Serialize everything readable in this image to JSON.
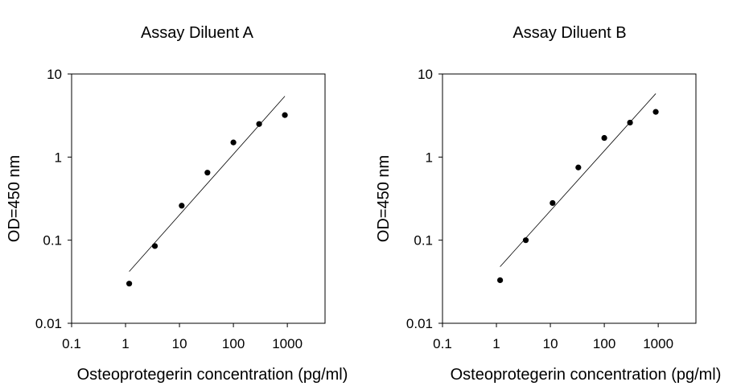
{
  "chart_data": [
    {
      "type": "scatter",
      "title": "Assay Diluent A",
      "xlabel": "Osteoprotegerin concentration (pg/ml)",
      "ylabel": "OD=450 nm",
      "x_scale": "log",
      "y_scale": "log",
      "xlim": [
        0.1,
        5000
      ],
      "ylim": [
        0.01,
        10
      ],
      "x_ticks": [
        0.1,
        1,
        10,
        100,
        1000
      ],
      "x_tick_labels": [
        "0.1",
        "1",
        "10",
        "100",
        "1000"
      ],
      "y_ticks": [
        0.01,
        0.1,
        1,
        10
      ],
      "y_tick_labels": [
        "0.01",
        "0.1",
        "1",
        "10"
      ],
      "grid": false,
      "series": [
        {
          "x": [
            1.17,
            3.5,
            11,
            33,
            100,
            300,
            900
          ],
          "y": [
            0.03,
            0.085,
            0.26,
            0.65,
            1.5,
            2.5,
            3.2
          ]
        }
      ],
      "fit_line": {
        "x": [
          1.17,
          900
        ],
        "y": [
          0.042,
          5.4
        ]
      }
    },
    {
      "type": "scatter",
      "title": "Assay Diluent B",
      "xlabel": "Osteoprotegerin concentration (pg/ml)",
      "ylabel": "OD=450 nm",
      "x_scale": "log",
      "y_scale": "log",
      "xlim": [
        0.1,
        5000
      ],
      "ylim": [
        0.01,
        10
      ],
      "x_ticks": [
        0.1,
        1,
        10,
        100,
        1000
      ],
      "x_tick_labels": [
        "0.1",
        "1",
        "10",
        "100",
        "1000"
      ],
      "y_ticks": [
        0.01,
        0.1,
        1,
        10
      ],
      "y_tick_labels": [
        "0.01",
        "0.1",
        "1",
        "10"
      ],
      "grid": false,
      "series": [
        {
          "x": [
            1.17,
            3.5,
            11,
            33,
            100,
            300,
            900
          ],
          "y": [
            0.033,
            0.1,
            0.28,
            0.75,
            1.7,
            2.6,
            3.5
          ]
        }
      ],
      "fit_line": {
        "x": [
          1.17,
          900
        ],
        "y": [
          0.048,
          5.8
        ]
      }
    }
  ]
}
